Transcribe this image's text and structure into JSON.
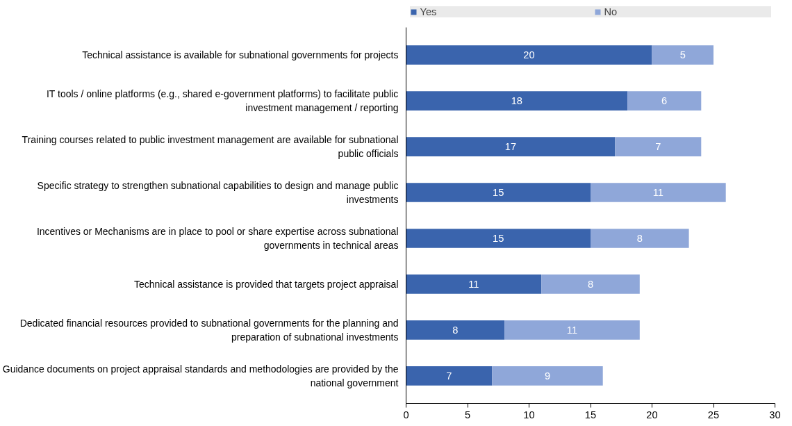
{
  "chart_data": {
    "type": "bar",
    "orientation": "horizontal",
    "stacked": true,
    "data_labels": true,
    "legend": "top",
    "grid": false,
    "categories": [
      "Technical assistance is available for subnational governments for projects",
      "IT tools / online platforms (e.g., shared e-government platforms) to facilitate public investment management / reporting",
      "Training courses related to public investment management are available for subnational public officials",
      "Specific strategy to strengthen subnational capabilities to design and manage public investments",
      "Incentives or Mechanisms are in place to pool or share expertise across subnational governments in technical areas",
      "Technical assistance is provided that targets project appraisal",
      "Dedicated financial resources provided to subnational governments for the planning and preparation of subnational investments",
      "Guidance documents on project appraisal standards and methodologies are provided by the national government"
    ],
    "series": [
      {
        "name": "Yes",
        "color": "#3a64ad",
        "values": [
          20,
          18,
          17,
          15,
          15,
          11,
          8,
          7
        ]
      },
      {
        "name": "No",
        "color": "#8fa7d9",
        "values": [
          5,
          6,
          7,
          11,
          8,
          8,
          11,
          9
        ]
      }
    ],
    "xlim": [
      0,
      30
    ],
    "xticks": [
      0,
      5,
      10,
      15,
      20,
      25,
      30
    ]
  }
}
